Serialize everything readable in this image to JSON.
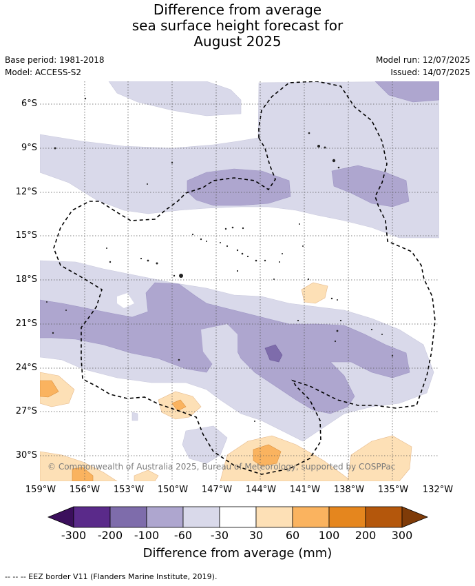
{
  "header": {
    "title_line1": "Difference from average",
    "title_line2": "sea surface height forecast for",
    "title_line3": "August 2025",
    "base_period": "Base period: 1981-2018",
    "model": "Model: ACCESS-S2",
    "model_run": "Model run: 12/07/2025",
    "issued": "Issued: 14/07/2025"
  },
  "map": {
    "latitude_labels": [
      "6°S",
      "9°S",
      "12°S",
      "15°S",
      "18°S",
      "21°S",
      "24°S",
      "27°S",
      "30°S"
    ],
    "longitude_labels": [
      "159°W",
      "156°W",
      "153°W",
      "150°W",
      "147°W",
      "144°W",
      "141°W",
      "138°W",
      "135°W",
      "132°W"
    ],
    "watermark": "© Commonwealth of Australia 2025, Bureau of Meteorology, supported by COSPPac",
    "gridlines": true
  },
  "colorbar": {
    "title": "Difference from average (mm)",
    "tick_labels": [
      "-300",
      "-200",
      "-100",
      "-60",
      "-30",
      "30",
      "60",
      "100",
      "200",
      "300"
    ],
    "colors": {
      "below_-300": "#3b0f5c",
      "-300_-200": "#5a2a8a",
      "-200_-100": "#7e6cab",
      "-100_-60": "#aea6cf",
      "-60_-30": "#d9d9ea",
      "-30_30": "#ffffff",
      "30_60": "#fde0b6",
      "60_100": "#fab35f",
      "100_200": "#e5861e",
      "200_300": "#b4570c",
      "above_300": "#7f3b08"
    }
  },
  "footnote": "--  --  -- EEZ border V11 (Flanders Marine Institute, 2019)."
}
